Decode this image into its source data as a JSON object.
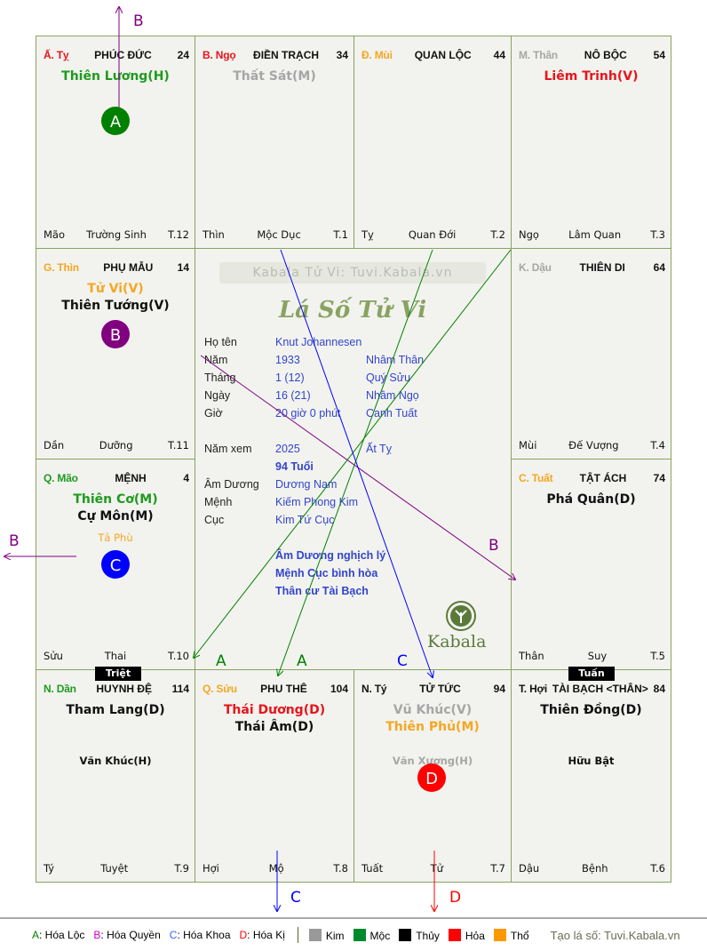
{
  "cells": [
    {
      "can": "Ấ. Tỵ",
      "can_color": "#e8141c",
      "palace": "PHÚC ĐỨC",
      "age": "24",
      "stars": [
        {
          "t": "Thiên Lương(H)",
          "c": "#1f9a1f"
        }
      ],
      "minor": [],
      "left": "Mão",
      "mid": "Trường Sinh",
      "right": "T.12"
    },
    {
      "can": "B. Ngọ",
      "can_color": "#e8141c",
      "palace": "ĐIỀN TRẠCH",
      "age": "34",
      "stars": [
        {
          "t": "Thất Sát(M)",
          "c": "#a6a6a6"
        }
      ],
      "minor": [],
      "left": "Thìn",
      "mid": "Mộc Dục",
      "right": "T.1"
    },
    {
      "can": "Đ. Mùi",
      "can_color": "#f5a623",
      "palace": "QUAN LỘC",
      "age": "44",
      "stars": [],
      "minor": [],
      "left": "Tỵ",
      "mid": "Quan Đới",
      "right": "T.2"
    },
    {
      "can": "M. Thân",
      "can_color": "#a6a6a6",
      "palace": "NÔ BỘC",
      "age": "54",
      "stars": [
        {
          "t": "Liêm Trinh(V)",
          "c": "#e8141c"
        }
      ],
      "minor": [],
      "left": "Ngọ",
      "mid": "Lâm Quan",
      "right": "T.3"
    },
    {
      "can": "G. Thìn",
      "can_color": "#f5a623",
      "palace": "PHỤ MẪU",
      "age": "14",
      "stars": [
        {
          "t": "Tử Vi(V)",
          "c": "#f5a623"
        },
        {
          "t": "Thiên Tướng(V)",
          "c": "#111"
        }
      ],
      "minor": [],
      "left": "Dần",
      "mid": "Dưỡng",
      "right": "T.11"
    },
    {
      "can": "K. Dậu",
      "can_color": "#a6a6a6",
      "palace": "THIÊN DI",
      "age": "64",
      "stars": [],
      "minor": [],
      "left": "Mùi",
      "mid": "Đế Vượng",
      "right": "T.4"
    },
    {
      "can": "Q. Mão",
      "can_color": "#1f9a1f",
      "palace": "MỆNH",
      "age": "4",
      "stars": [
        {
          "t": "Thiên Cơ(M)",
          "c": "#1f9a1f"
        },
        {
          "t": "Cự Môn(M)",
          "c": "#111"
        }
      ],
      "minor": [
        {
          "t": "Tả Phù",
          "c": "#f5a623"
        }
      ],
      "left": "Sửu",
      "mid": "Thai",
      "right": "T.10"
    },
    {
      "can": "C. Tuất",
      "can_color": "#f5a623",
      "palace": "TẬT ÁCH",
      "age": "74",
      "stars": [
        {
          "t": "Phá Quân(D)",
          "c": "#111"
        }
      ],
      "minor": [],
      "left": "Thân",
      "mid": "Suy",
      "right": "T.5"
    },
    {
      "can": "N. Dần",
      "can_color": "#1f9a1f",
      "palace": "HUYNH ĐỆ",
      "age": "114",
      "stars": [
        {
          "t": "Tham Lang(D)",
          "c": "#111"
        }
      ],
      "minor": [
        {
          "t": "Văn Khúc(H)",
          "c": "#111"
        }
      ],
      "left": "Tý",
      "mid": "Tuyệt",
      "right": "T.9"
    },
    {
      "can": "Q. Sửu",
      "can_color": "#f5a623",
      "palace": "PHU THÊ",
      "age": "104",
      "stars": [
        {
          "t": "Thái Dương(D)",
          "c": "#e8141c"
        },
        {
          "t": "Thái Âm(D)",
          "c": "#111"
        }
      ],
      "minor": [],
      "left": "Hợi",
      "mid": "Mộ",
      "right": "T.8"
    },
    {
      "can": "N. Tý",
      "can_color": "#111",
      "palace": "TỬ TỨC",
      "age": "94",
      "stars": [
        {
          "t": "Vũ Khúc(V)",
          "c": "#a6a6a6"
        },
        {
          "t": "Thiên Phủ(M)",
          "c": "#f5a623"
        }
      ],
      "minor": [
        {
          "t": "Văn Xương(H)",
          "c": "#a6a6a6"
        }
      ],
      "left": "Tuất",
      "mid": "Tử",
      "right": "T.7"
    },
    {
      "can": "T. Hợi",
      "can_color": "#111",
      "palace": "TÀI BẠCH <THÂN>",
      "age": "84",
      "stars": [
        {
          "t": "Thiên Đồng(D)",
          "c": "#111"
        }
      ],
      "minor": [
        {
          "t": "Hữu Bật",
          "c": "#111"
        }
      ],
      "left": "Dậu",
      "mid": "Bệnh",
      "right": "T.6"
    }
  ],
  "badges": {
    "triet": "Triệt",
    "tuan": "Tuấn"
  },
  "center": {
    "watermark": "Kabala Tử Vi: Tuvi.Kabala.vn",
    "title": "Lá Số Tử Vi",
    "logo_text": "Kabala",
    "rows": [
      {
        "label": "Họ tên",
        "v1": "Knut Johannesen",
        "v2": ""
      },
      {
        "label": "Năm",
        "v1": "1933",
        "v2": "Nhâm Thân"
      },
      {
        "label": "Tháng",
        "v1": "1  (12)",
        "v2": "Quý Sửu"
      },
      {
        "label": "Ngày",
        "v1": "16  (21)",
        "v2": "Nhâm Ngọ"
      },
      {
        "label": "Giờ",
        "v1": "20 giờ 0 phút",
        "v2": "Canh Tuất"
      },
      {
        "label": "Năm xem",
        "v1": "2025",
        "v2": "Ất Tỵ"
      },
      {
        "label": "",
        "v1": "94 Tuổi",
        "v2": ""
      },
      {
        "label": "Âm Dương",
        "v1": "Dương Nam",
        "v2": ""
      },
      {
        "label": "Mệnh",
        "v1": "Kiếm Phong Kim",
        "v2": ""
      },
      {
        "label": "Cục",
        "v1": "Kim Tứ Cục",
        "v2": ""
      }
    ],
    "notes": [
      "Âm Dương nghịch lý",
      "Mệnh Cục bình hòa",
      "Thân cư Tài Bạch"
    ]
  },
  "markers": {
    "A": {
      "label": "A",
      "color": "#008000"
    },
    "B": {
      "label": "B",
      "color": "#800080"
    },
    "C": {
      "label": "C",
      "color": "#0000ff"
    },
    "D": {
      "label": "D",
      "color": "#ff0000"
    }
  },
  "legend": {
    "hoa": [
      {
        "k": "A",
        "t": ": Hóa Lộc",
        "c": "#008000"
      },
      {
        "k": "B",
        "t": ": Hóa Quyền",
        "c": "#cc00cc"
      },
      {
        "k": "C",
        "t": ": Hóa Khoa",
        "c": "#3366ff"
      },
      {
        "k": "D",
        "t": ": Hóa Kị",
        "c": "#ff0000"
      }
    ],
    "elements": [
      {
        "t": "Kim",
        "c": "#999999"
      },
      {
        "t": "Mộc",
        "c": "#008a2e"
      },
      {
        "t": "Thủy",
        "c": "#000000"
      },
      {
        "t": "Hỏa",
        "c": "#ff0000"
      },
      {
        "t": "Thổ",
        "c": "#ff9900"
      }
    ],
    "credit": "Tạo lá số: Tuvi.Kabala.vn"
  }
}
